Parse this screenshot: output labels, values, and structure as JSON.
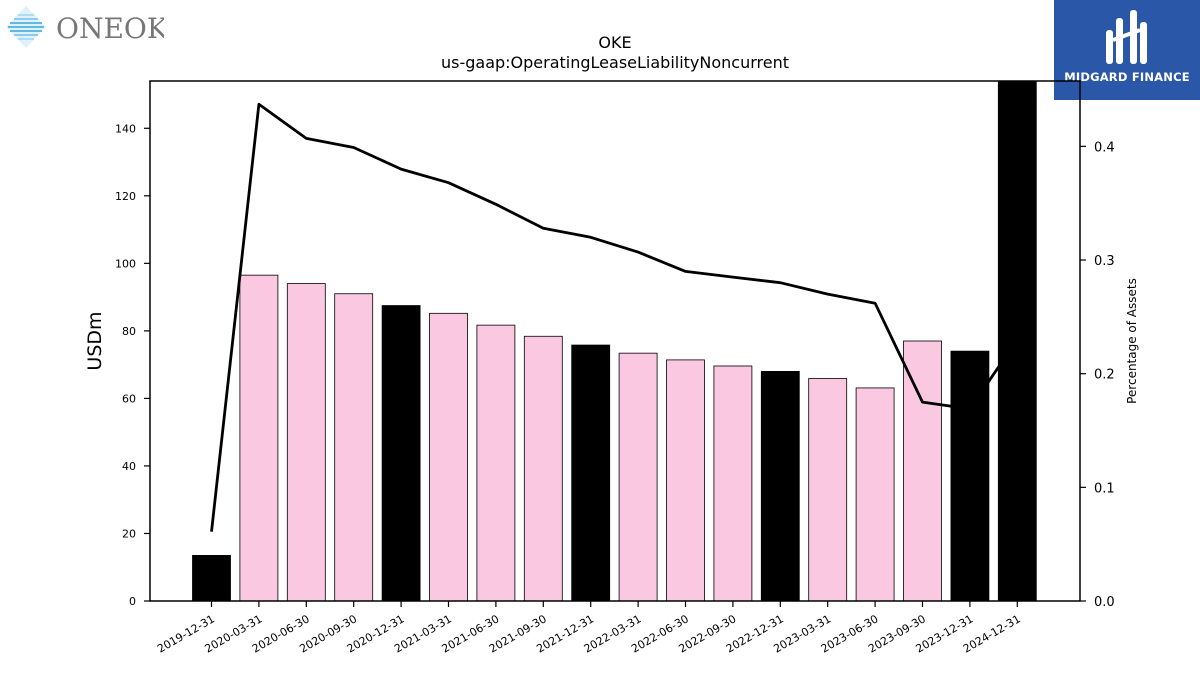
{
  "brand": {
    "left_logo_text": "ONEOK",
    "right_logo_text": "MIDGARD FINANCE",
    "right_logo_color": "#2b57a8"
  },
  "chart_data": {
    "type": "bar",
    "title": "OKE",
    "subtitle": "us-gaap:OperatingLeaseLiabilityNoncurrent",
    "ylabel": "USDm",
    "y2label": "Percentage of Assets",
    "ylim": [
      0,
      154
    ],
    "y2lim": [
      0,
      0.4575
    ],
    "yticks": [
      0,
      20,
      40,
      60,
      80,
      100,
      120,
      140
    ],
    "y2ticks": [
      0.0,
      0.1,
      0.2,
      0.3,
      0.4
    ],
    "categories": [
      "2019-12-31",
      "2020-03-31",
      "2020-06-30",
      "2020-09-30",
      "2020-12-31",
      "2021-03-31",
      "2021-06-30",
      "2021-09-30",
      "2021-12-31",
      "2022-03-31",
      "2022-06-30",
      "2022-09-30",
      "2022-12-31",
      "2023-03-31",
      "2023-06-30",
      "2023-09-30",
      "2023-12-31",
      "2024-12-31"
    ],
    "series": [
      {
        "values": [
          13.5,
          96.5,
          94.0,
          91.0,
          87.5,
          85.2,
          81.7,
          78.4,
          75.8,
          73.4,
          71.4,
          69.6,
          68.0,
          65.9,
          63.1,
          77.0,
          74.0,
          155.0
        ],
        "annual": [
          true,
          false,
          false,
          false,
          true,
          false,
          false,
          false,
          true,
          false,
          false,
          false,
          true,
          false,
          false,
          false,
          true,
          true
        ],
        "colors": {
          "annual": "#000000",
          "quarterly": "#fbc8e2"
        }
      },
      {
        "axis": "right",
        "type": "line",
        "values": [
          0.061,
          0.437,
          0.407,
          0.399,
          0.38,
          0.368,
          0.349,
          0.328,
          0.32,
          0.307,
          0.29,
          0.285,
          0.28,
          0.27,
          0.262,
          0.175,
          0.169,
          0.23
        ],
        "color": "#000000"
      }
    ]
  }
}
